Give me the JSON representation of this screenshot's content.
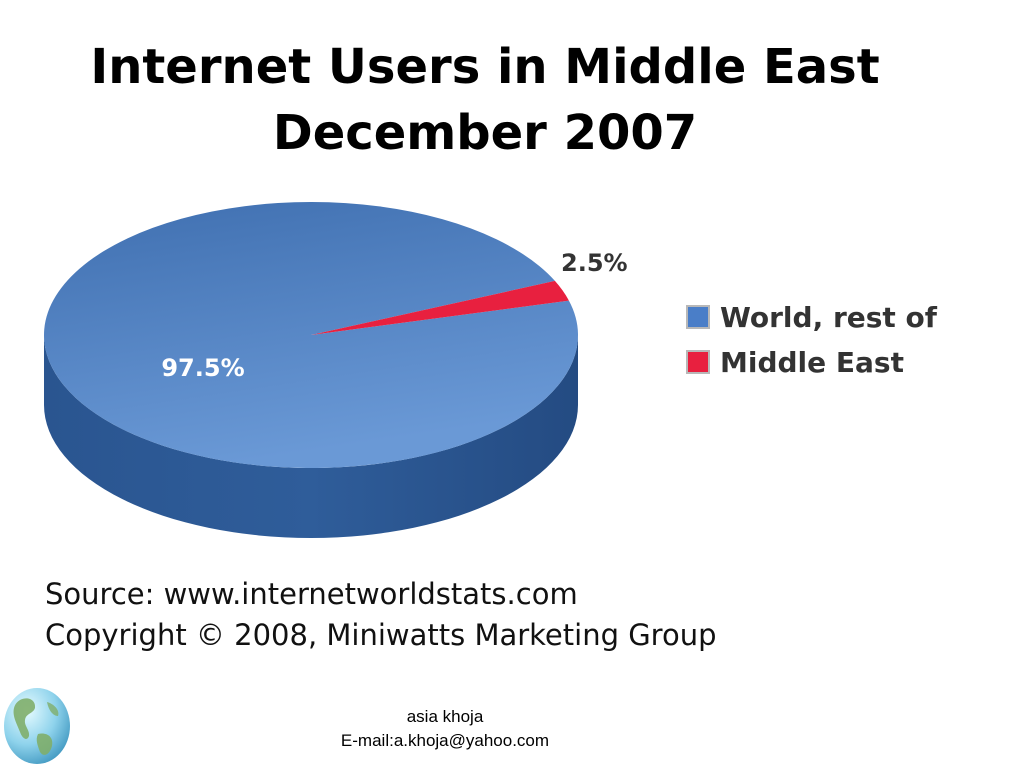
{
  "title": {
    "line1": "Internet Users in Middle East",
    "line2": "December 2007"
  },
  "chart_data": {
    "type": "pie",
    "title": "Internet Users in Middle East December 2007",
    "series": [
      {
        "name": "World, rest of",
        "value": 97.5,
        "label": "97.5%",
        "color": "#4a7ec8"
      },
      {
        "name": "Middle East",
        "value": 2.5,
        "label": "2.5%",
        "color": "#e8203f"
      }
    ],
    "legend_position": "right"
  },
  "colors": {
    "world_side": "#2d5a96",
    "world_top_light": "#6896d2",
    "world_top_dark": "#3f6fb0",
    "middle_east": "#e8203f"
  },
  "source": {
    "line1": "Source: www.internetworldstats.com",
    "line2": "Copyright © 2008, Miniwatts Marketing Group"
  },
  "footer": {
    "name": "asia khoja",
    "email": "E-mail:a.khoja@yahoo.com"
  },
  "logo": {
    "icon": "globe-icon"
  }
}
